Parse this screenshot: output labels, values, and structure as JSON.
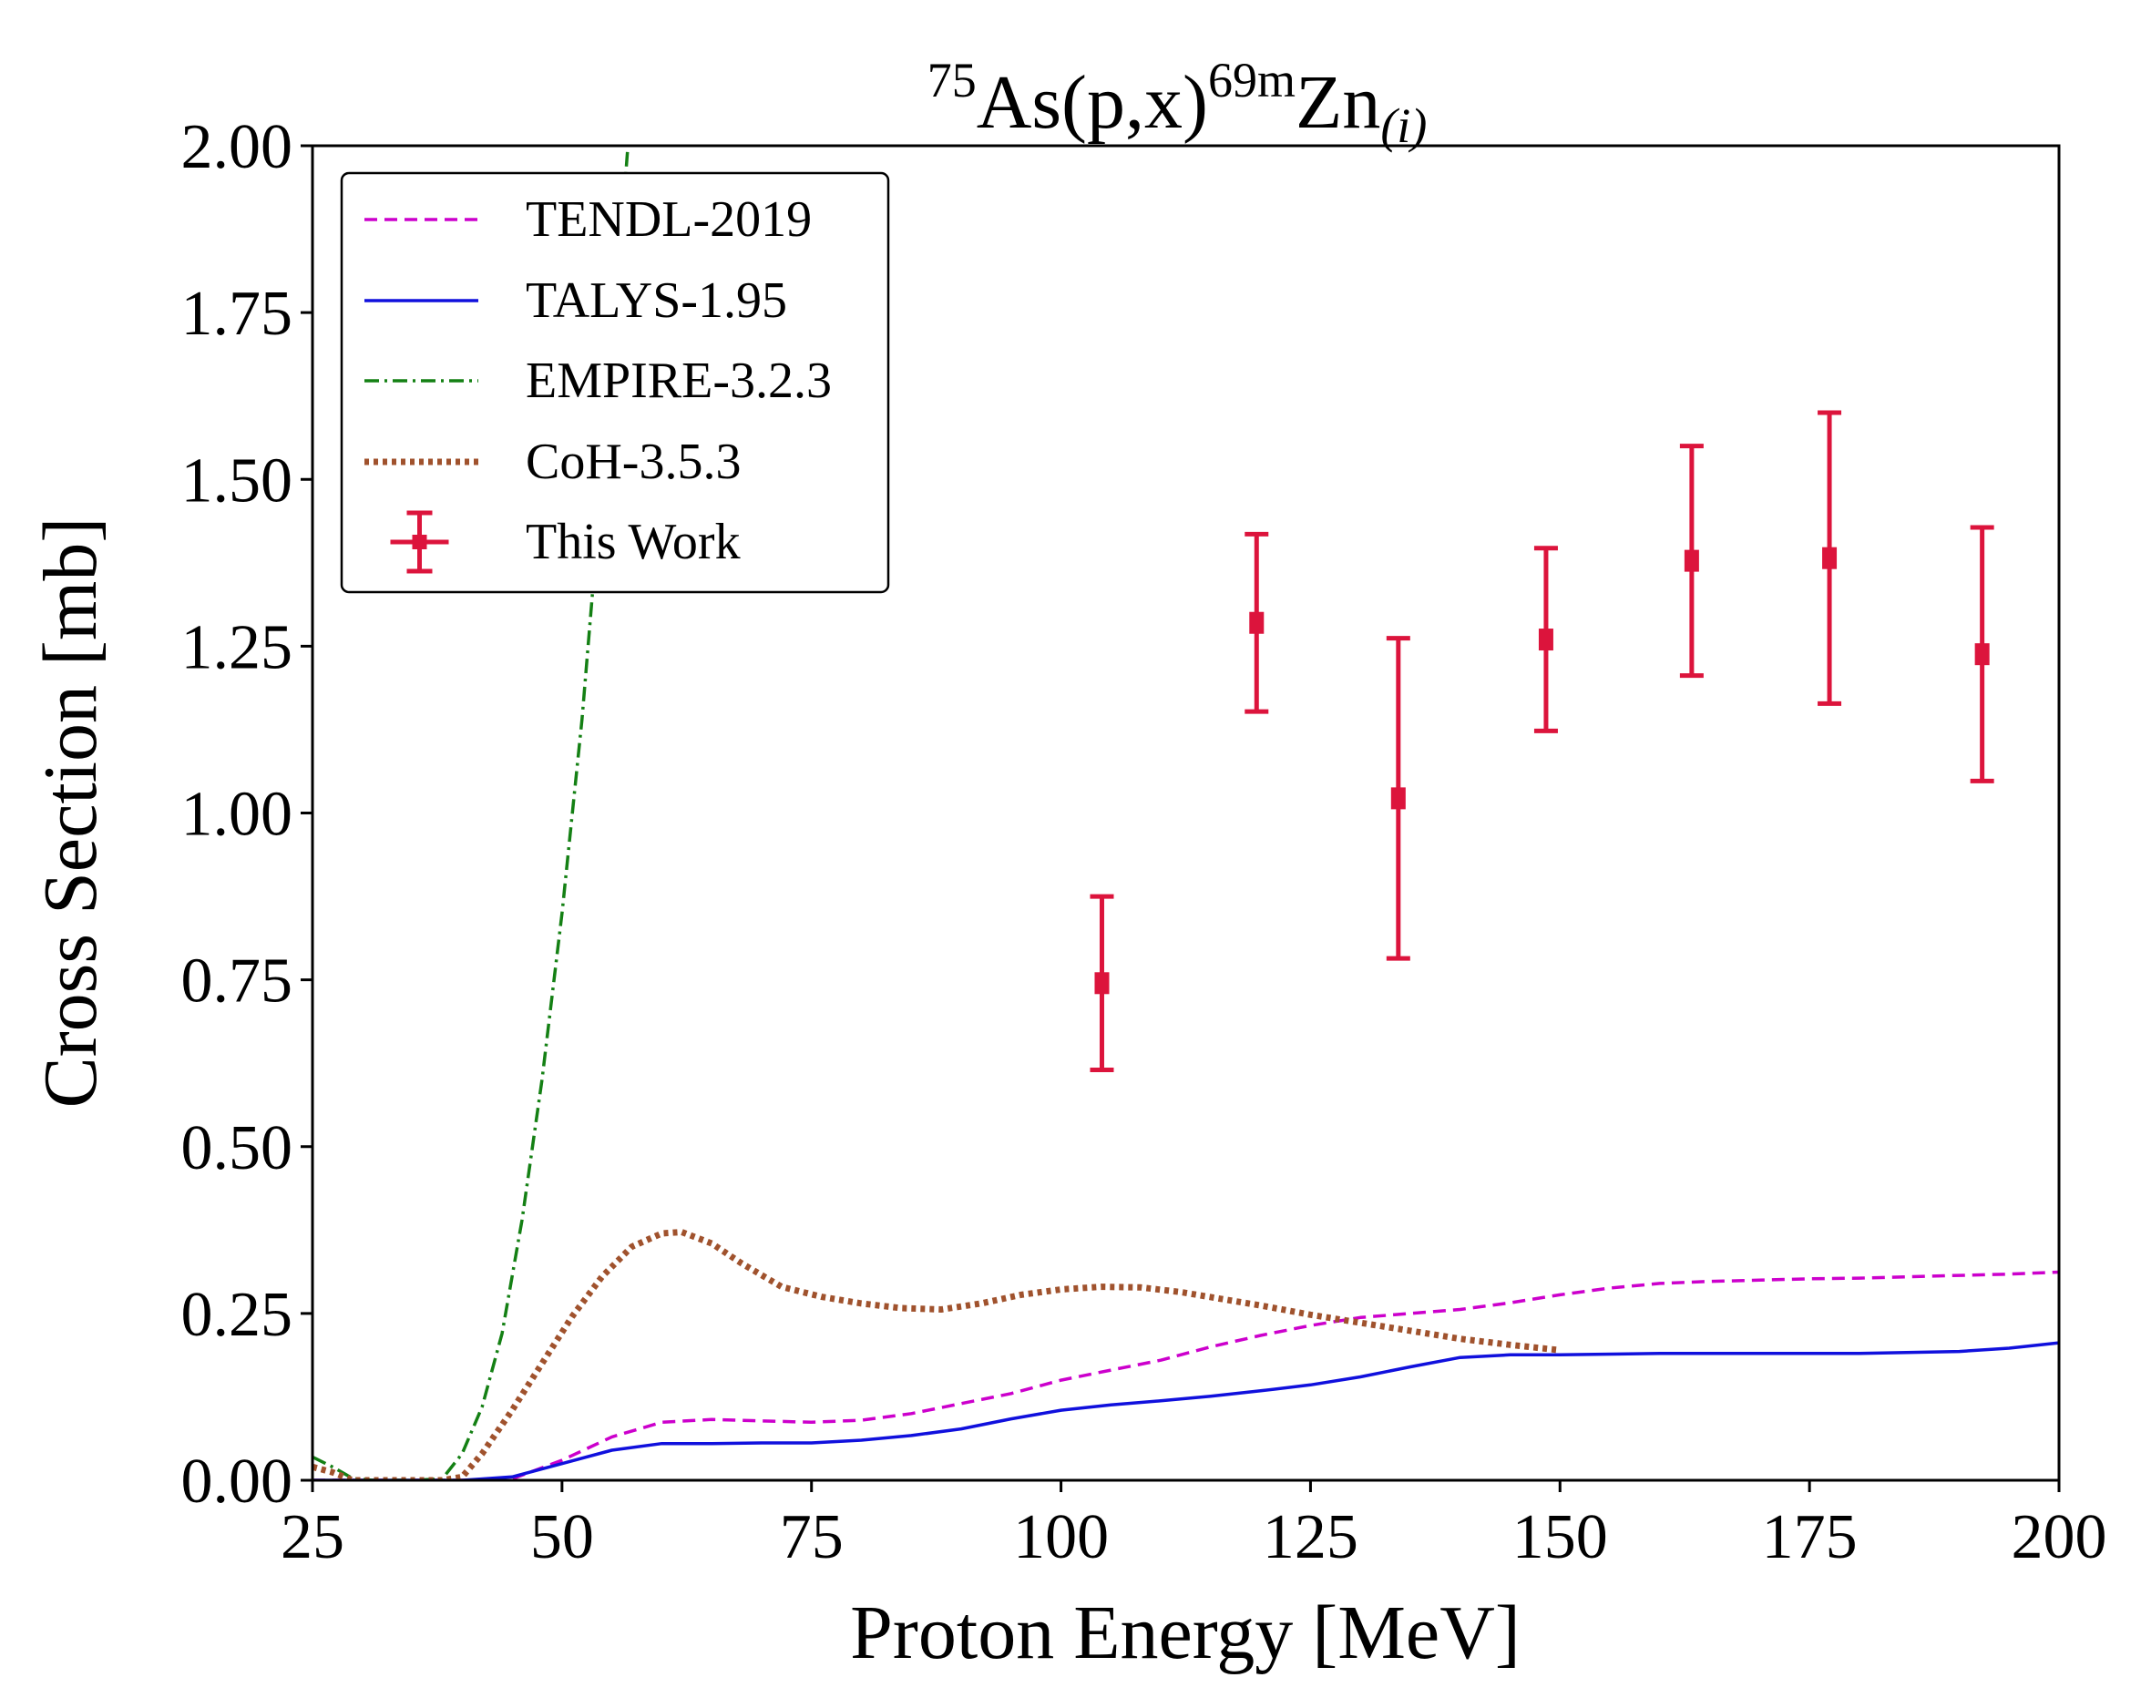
{
  "chart_data": {
    "type": "line",
    "title": {
      "mass_number": "75",
      "target": "As(p,x)",
      "product_mass": "69m",
      "product": "Zn",
      "subscript": "(i)"
    },
    "xlabel": "Proton Energy [MeV]",
    "ylabel": "Cross Section [mb]",
    "xlim": [
      25,
      200
    ],
    "ylim": [
      0,
      2
    ],
    "xticks": [
      25,
      50,
      75,
      100,
      125,
      150,
      175,
      200
    ],
    "xtick_labels": [
      "25",
      "50",
      "75",
      "100",
      "125",
      "150",
      "175",
      "200"
    ],
    "yticks": [
      0,
      0.25,
      0.5,
      0.75,
      1.0,
      1.25,
      1.5,
      1.75,
      2.0
    ],
    "ytick_labels": [
      "0.00",
      "0.25",
      "0.50",
      "0.75",
      "1.00",
      "1.25",
      "1.50",
      "1.75",
      "2.00"
    ],
    "grid": false,
    "legend_position": "top-left",
    "series": [
      {
        "name": "TENDL-2019",
        "style": "dashed",
        "color": "#cc00cc",
        "x": [
          25,
          30,
          40,
          45,
          50,
          55,
          60,
          65,
          70,
          75,
          80,
          85,
          90,
          95,
          100,
          105,
          110,
          115,
          120,
          125,
          130,
          135,
          140,
          145,
          150,
          155,
          160,
          165,
          170,
          175,
          180,
          185,
          190,
          195,
          200
        ],
        "y": [
          0.0,
          0.0,
          0.0,
          0.002,
          0.03,
          0.065,
          0.087,
          0.091,
          0.089,
          0.087,
          0.09,
          0.1,
          0.115,
          0.13,
          0.15,
          0.165,
          0.18,
          0.2,
          0.217,
          0.232,
          0.244,
          0.25,
          0.256,
          0.266,
          0.278,
          0.288,
          0.295,
          0.298,
          0.3,
          0.302,
          0.303,
          0.305,
          0.307,
          0.309,
          0.312
        ]
      },
      {
        "name": "TALYS-1.95",
        "style": "solid",
        "color": "#1010dd",
        "x": [
          25,
          30,
          40,
          45,
          50,
          55,
          60,
          65,
          70,
          75,
          80,
          85,
          90,
          95,
          100,
          105,
          110,
          115,
          120,
          125,
          130,
          135,
          140,
          145,
          150,
          160,
          170,
          180,
          190,
          195,
          200
        ],
        "y": [
          0.0,
          0.0,
          0.0,
          0.005,
          0.025,
          0.045,
          0.055,
          0.055,
          0.056,
          0.056,
          0.06,
          0.067,
          0.077,
          0.092,
          0.105,
          0.113,
          0.119,
          0.126,
          0.134,
          0.143,
          0.155,
          0.17,
          0.184,
          0.188,
          0.188,
          0.19,
          0.19,
          0.19,
          0.193,
          0.198,
          0.206
        ]
      },
      {
        "name": "EMPIRE-3.2.3",
        "style": "dashdot",
        "color": "#148014",
        "x": [
          25,
          27,
          29,
          31,
          35,
          38,
          40,
          42,
          44,
          46,
          48,
          50,
          52,
          54,
          55,
          56,
          56.6
        ],
        "y": [
          0.035,
          0.02,
          0.003,
          0.0,
          0.0,
          0.002,
          0.04,
          0.11,
          0.22,
          0.39,
          0.6,
          0.85,
          1.14,
          1.5,
          1.7,
          1.88,
          2.0
        ]
      },
      {
        "name": "CoH-3.5.3",
        "style": "dotted",
        "color": "#a0522d",
        "x": [
          25,
          27,
          29,
          31,
          38,
          40,
          42,
          45,
          48,
          51,
          54,
          57,
          60,
          62,
          65,
          68,
          72,
          76,
          80,
          84,
          88,
          92,
          96,
          100,
          104,
          108,
          112,
          116,
          120,
          125,
          130,
          135,
          140,
          145,
          150
        ],
        "y": [
          0.02,
          0.012,
          0.0,
          0.0,
          0.0,
          0.005,
          0.04,
          0.105,
          0.175,
          0.245,
          0.305,
          0.35,
          0.37,
          0.372,
          0.355,
          0.325,
          0.29,
          0.275,
          0.265,
          0.258,
          0.256,
          0.265,
          0.278,
          0.286,
          0.29,
          0.289,
          0.282,
          0.272,
          0.262,
          0.248,
          0.236,
          0.224,
          0.212,
          0.203,
          0.195
        ]
      }
    ],
    "measurements": {
      "name": "This Work",
      "color": "#dc143c",
      "x": [
        104.1,
        119.6,
        133.8,
        148.6,
        163.2,
        177.0,
        192.3
      ],
      "y": [
        0.745,
        1.285,
        1.022,
        1.26,
        1.378,
        1.382,
        1.238
      ],
      "yerr": [
        0.13,
        0.133,
        0.24,
        0.137,
        0.172,
        0.218,
        0.19
      ],
      "xerr": [
        0.6,
        0.4,
        0.3,
        0.3,
        0.3,
        0.3,
        0.3
      ]
    }
  }
}
